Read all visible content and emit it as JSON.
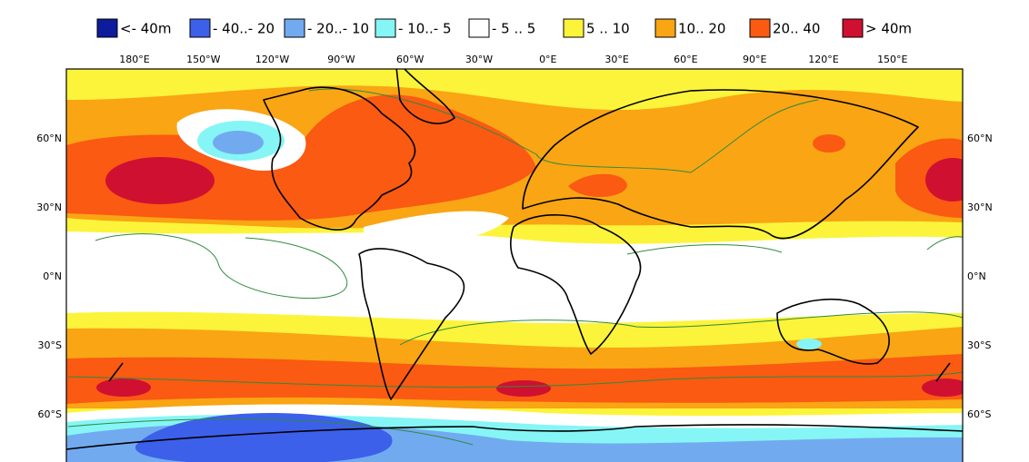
{
  "legend": {
    "items": [
      {
        "label": "<- 40m",
        "color": "#0c1c9c"
      },
      {
        "label": "- 40..- 20",
        "color": "#3c60ea"
      },
      {
        "label": "- 20..- 10",
        "color": "#72aaf0"
      },
      {
        "label": "- 10..- 5",
        "color": "#86f5f5"
      },
      {
        "label": "- 5 .. 5",
        "color": "#ffffff"
      },
      {
        "label": "5 .. 10",
        "color": "#fcf43a"
      },
      {
        "label": "10.. 20",
        "color": "#f9a514"
      },
      {
        "label": "20.. 40",
        "color": "#fa5a12"
      },
      {
        "label": "> 40m",
        "color": "#cf1030"
      }
    ]
  },
  "axes": {
    "top": [
      "180°E",
      "150°W",
      "120°W",
      "90°W",
      "60°W",
      "30°W",
      "0°E",
      "30°E",
      "60°E",
      "90°E",
      "120°E",
      "150°E"
    ],
    "left": [
      "60°N",
      "30°N",
      "0°N",
      "30°S",
      "60°S"
    ],
    "right": [
      "60°N",
      "30°N",
      "0°N",
      "30°S",
      "60°S"
    ]
  }
}
